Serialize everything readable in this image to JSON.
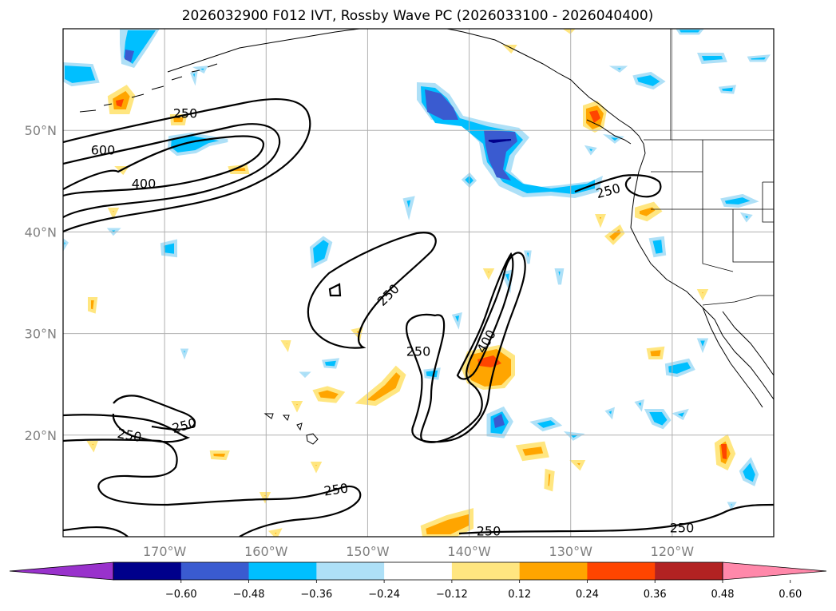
{
  "title": "2026032900 F012 IVT, Rossby Wave PC (2026033100 - 2026040400)",
  "map": {
    "lon_range": [
      -180,
      -110
    ],
    "lat_range": [
      10,
      60
    ],
    "lon_ticks": [
      {
        "value": -170,
        "label": "170°W"
      },
      {
        "value": -160,
        "label": "160°W"
      },
      {
        "value": -150,
        "label": "150°W"
      },
      {
        "value": -140,
        "label": "140°W"
      },
      {
        "value": -130,
        "label": "130°W"
      },
      {
        "value": -120,
        "label": "120°W"
      }
    ],
    "lat_ticks": [
      {
        "value": 20,
        "label": "20°N"
      },
      {
        "value": 30,
        "label": "30°N"
      },
      {
        "value": 40,
        "label": "40°N"
      },
      {
        "value": 50,
        "label": "50°N"
      }
    ]
  },
  "ivt_contour_labels": [
    "250",
    "600",
    "400",
    "250",
    "250",
    "400",
    "250",
    "250",
    "250",
    "250",
    "250",
    "250"
  ],
  "colorbar": {
    "ticks": [
      "−0.60",
      "−0.48",
      "−0.36",
      "−0.24",
      "−0.12",
      "0.12",
      "0.24",
      "0.36",
      "0.48",
      "0.60"
    ],
    "colors": [
      "#9932cc",
      "#00008b",
      "#3a5bd0",
      "#00bfff",
      "#aee0f7",
      "#ffffff",
      "#ffe680",
      "#ffa500",
      "#ff4500",
      "#b22222",
      "#ff88aa"
    ]
  },
  "colors": {
    "purple": "#9932cc",
    "navy": "#00008b",
    "royal": "#3a5bd0",
    "sky": "#00bfff",
    "light_blue": "#aee0f7",
    "light_yellow": "#ffe680",
    "orange": "#ffa500",
    "red_orange": "#ff4500",
    "dark_red": "#b22222",
    "pink": "#ff88aa"
  }
}
